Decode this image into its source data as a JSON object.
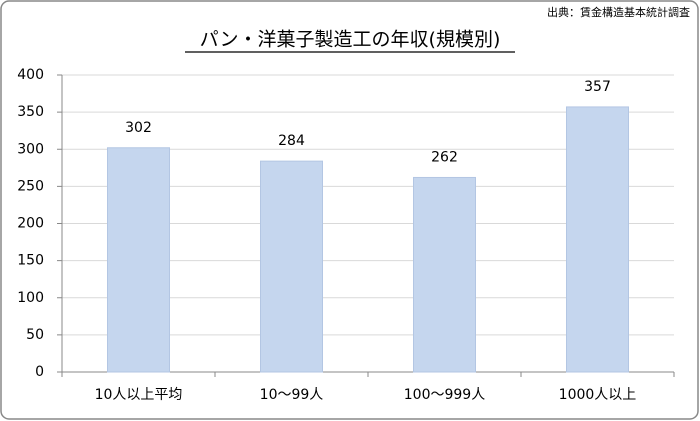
{
  "chart_data": {
    "type": "bar",
    "title": "パン・洋菓子製造工の年収(規模別)",
    "source": "出典：賃金構造基本統計調査",
    "categories": [
      "10人以上平均",
      "10〜99人",
      "100〜999人",
      "1000人以上"
    ],
    "values": [
      302,
      284,
      262,
      357
    ],
    "color": "#c5d6ee",
    "ylim": [
      0,
      400
    ],
    "yticks": [
      0,
      50,
      100,
      150,
      200,
      250,
      300,
      350,
      400
    ],
    "grid": true
  }
}
